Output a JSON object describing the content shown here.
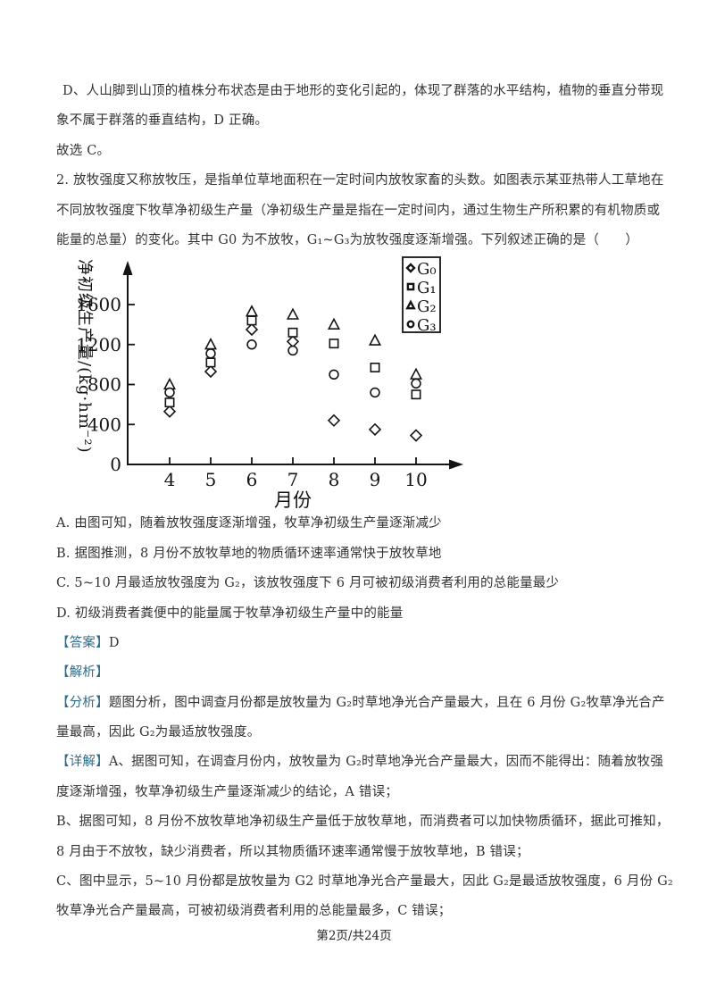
{
  "prev": {
    "lines": [
      "D、人山脚到山顶的植株分布状态是由于地形的变化引起的，体现了群落的水平结构，植物的垂直分带现",
      "象不属于群落的垂直结构，D 正确。"
    ],
    "conclusion": "故选 C。"
  },
  "question": {
    "number": "2.",
    "lines": [
      "2. 放牧强度又称放牧压，是指单位草地面积在一定时间内放牧家畜的头数。如图表示某亚热带人工草地在",
      "不同放牧强度下牧草净初级生产量（净初级生产量是指在一定时间内，通过生物生产所积累的有机物质或",
      "能量的总量）的变化。其中 G0 为不放牧，G₁~G₃为放牧强度逐渐增强。下列叙述正确的是（　　）"
    ]
  },
  "chart_data": {
    "type": "scatter",
    "x": [
      4,
      5,
      6,
      7,
      8,
      9,
      10
    ],
    "xlabel": "月份",
    "ylabel": "净初级生产量/(kg·hm⁻²)",
    "ylim": [
      0,
      1600
    ],
    "yticks": [
      0,
      400,
      800,
      1200,
      1600
    ],
    "grid": false,
    "legend_position": "top-right",
    "series": [
      {
        "name": "G₀",
        "marker": "diamond",
        "values": [
          530,
          930,
          1350,
          1230,
          440,
          350,
          290
        ]
      },
      {
        "name": "G₁",
        "marker": "square",
        "values": [
          620,
          1020,
          1440,
          1320,
          1210,
          970,
          700
        ]
      },
      {
        "name": "G₂",
        "marker": "triangle",
        "values": [
          800,
          1200,
          1530,
          1500,
          1400,
          1240,
          900
        ]
      },
      {
        "name": "G₃",
        "marker": "circle",
        "values": [
          720,
          1110,
          1200,
          1140,
          900,
          720,
          810
        ]
      }
    ]
  },
  "options": [
    "A. 由图可知，随着放牧强度逐渐增强，牧草净初级生产量逐渐减少",
    "B. 据图推测，8 月份不放牧草地的物质循环速率通常快于放牧草地",
    "C. 5~10 月最适放牧强度为 G₂，该放牧强度下 6 月可被初级消费者利用的总能量最少",
    "D. 初级消费者粪便中的能量属于牧草净初级生产量中的能量"
  ],
  "answer": {
    "tag": "【答案】",
    "value": "D"
  },
  "sections": {
    "jiexi_tag": "【解析】",
    "fenxi_tag": "【分析】",
    "fenxi_lines": [
      "题图分析，图中调查月份都是放牧量为 G₂时草地净光合产量最大，且在 6 月份 G₂牧草净光合产",
      "量最高，因此 G₂为最适放牧强度。"
    ],
    "xiangjie_tag": "【详解】",
    "xiangjie_lines": [
      "A、据图可知，在调查月份内，放牧量为 G₂时草地净光合产量最大，因而不能得出：随着放牧强",
      "度逐渐增强，牧草净初级生产量逐渐减少的结论，A 错误；",
      "B、据图可知，8 月份不放牧草地净初级生产量低于放牧草地，而消费者可以加快物质循环，据此可推知，",
      "8 月由于不放牧，缺少消费者，所以其物质循环速率通常慢于放牧草地，B 错误；",
      "C、图中显示，5~10 月份都是放牧量为 G2 时草地净光合产量最大，因此 G₂是最适放牧强度，6 月份 G₂",
      "牧草净光合产量最高，可被初级消费者利用的总能量最多，C 错误；"
    ]
  },
  "footer": {
    "text": "第2页/共24页"
  },
  "colors": {
    "tag_teal": "#2e6d8e",
    "ink": "#141414"
  }
}
